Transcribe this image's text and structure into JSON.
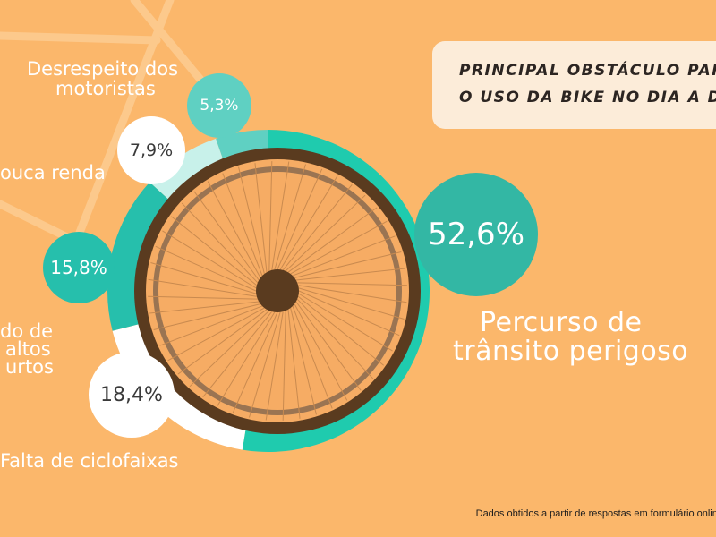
{
  "title": {
    "line1": "PRINCIPAL OBSTÁCULO PARA",
    "line2": "O USO DA BIKE NO DIA A DIA"
  },
  "chart_data": {
    "type": "pie",
    "title": "PRINCIPAL OBSTÁCULO PARA O USO DA BIKE NO DIA A DIA",
    "slices": [
      {
        "label_lines": [
          "Percurso de",
          "trânsito perigoso"
        ],
        "value": 52.6,
        "value_label": "52,6%",
        "color": "#1fcbae",
        "bubble_color": "#33b7a4"
      },
      {
        "label_lines": [
          "Falta de ciclofaixas"
        ],
        "value": 18.4,
        "value_label": "18,4%",
        "color": "#ffffff",
        "bubble_color": "#ffffff"
      },
      {
        "label_lines": [
          "do de",
          "altos",
          "urtos"
        ],
        "value": 15.8,
        "value_label": "15,8%",
        "color": "#26bfac",
        "bubble_color": "#26bfac"
      },
      {
        "label_lines": [
          "ouca renda"
        ],
        "value": 7.9,
        "value_label": "7,9%",
        "color": "#c8f1ea",
        "bubble_color": "#ffffff"
      },
      {
        "label_lines": [
          "Desrespeito dos",
          "motoristas"
        ],
        "value": 5.3,
        "value_label": "5,3%",
        "color": "#5fd0c2",
        "bubble_color": "#5fd0c2"
      }
    ]
  },
  "footer": {
    "source": "Dados obtidos a partir de respostas em formulário online"
  }
}
